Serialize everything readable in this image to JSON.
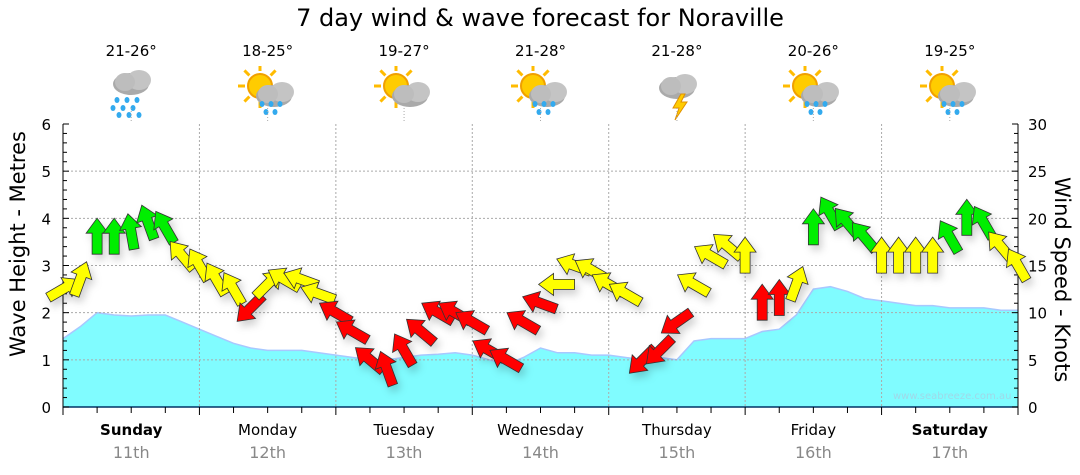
{
  "chart_data": {
    "type": "area",
    "title": "7 day wind & wave forecast for Noraville",
    "ylabel": "Wave Height - Metres",
    "y2label": "Wind Speed - Knots",
    "ylim": [
      0,
      6
    ],
    "y2lim": [
      0,
      30
    ],
    "yticks": [
      "0",
      "1",
      "2",
      "3",
      "4",
      "5",
      "6"
    ],
    "y2ticks": [
      "0",
      "5",
      "10",
      "15",
      "20",
      "25",
      "30"
    ],
    "interval_hours": 3,
    "days": [
      {
        "name": "Sunday",
        "date": "11th",
        "bold": true,
        "temp": "21-26°",
        "icon": "rain-cloud-icon"
      },
      {
        "name": "Monday",
        "date": "12th",
        "bold": false,
        "temp": "18-25°",
        "icon": "sun-cloud-rain-icon"
      },
      {
        "name": "Tuesday",
        "date": "13th",
        "bold": false,
        "temp": "19-27°",
        "icon": "sun-cloud-icon"
      },
      {
        "name": "Wednesday",
        "date": "14th",
        "bold": false,
        "temp": "21-28°",
        "icon": "sun-cloud-rain-icon"
      },
      {
        "name": "Thursday",
        "date": "15th",
        "bold": false,
        "temp": "21-28°",
        "icon": "cloud-lightning-icon"
      },
      {
        "name": "Friday",
        "date": "16th",
        "bold": false,
        "temp": "20-26°",
        "icon": "sun-cloud-rain-icon"
      },
      {
        "name": "Saturday",
        "date": "17th",
        "bold": true,
        "temp": "19-25°",
        "icon": "sun-cloud-rain-icon"
      }
    ],
    "wave_height_m": [
      1.45,
      1.7,
      2.0,
      1.95,
      1.93,
      1.95,
      1.95,
      1.8,
      1.65,
      1.5,
      1.35,
      1.25,
      1.2,
      1.2,
      1.2,
      1.15,
      1.1,
      1.05,
      1.0,
      1.0,
      1.05,
      1.1,
      1.12,
      1.15,
      1.1,
      1.0,
      0.9,
      1.05,
      1.25,
      1.15,
      1.15,
      1.1,
      1.1,
      1.05,
      1.0,
      1.05,
      1.0,
      1.4,
      1.45,
      1.45,
      1.45,
      1.6,
      1.65,
      1.95,
      2.5,
      2.55,
      2.45,
      2.3,
      2.25,
      2.2,
      2.15,
      2.15,
      2.1,
      2.1,
      2.1,
      2.05,
      2.05
    ],
    "wind_speed_kt": [
      12.5,
      13.5,
      18,
      18,
      18.5,
      19.5,
      19,
      16,
      15,
      13.5,
      12.5,
      10.5,
      13,
      13.5,
      13.5,
      12,
      10,
      8,
      5,
      4,
      6,
      8,
      10,
      10,
      9,
      6,
      5,
      9,
      11,
      13,
      15,
      14.5,
      13,
      12,
      5,
      6,
      9,
      13,
      16,
      17,
      16,
      11,
      11.5,
      13,
      19,
      20.5,
      19.5,
      18,
      16,
      16,
      16,
      16,
      18,
      20,
      19.5,
      17,
      15
    ],
    "wind_direction_deg": [
      60,
      20,
      0,
      0,
      350,
      340,
      330,
      320,
      330,
      330,
      330,
      225,
      45,
      300,
      290,
      290,
      300,
      300,
      310,
      340,
      330,
      310,
      300,
      300,
      300,
      300,
      300,
      300,
      290,
      270,
      290,
      300,
      300,
      300,
      225,
      225,
      235,
      300,
      300,
      310,
      0,
      0,
      0,
      20,
      0,
      330,
      320,
      320,
      0,
      0,
      0,
      0,
      330,
      0,
      330,
      320,
      330
    ],
    "wind_color_thresholds_kt": [
      11.8,
      17.5
    ],
    "wind_colors": [
      "#ff0000",
      "#ffff00",
      "#00ee00"
    ],
    "wave_color": "#80fcff",
    "watermark": "www.seabreeze.com.au"
  }
}
